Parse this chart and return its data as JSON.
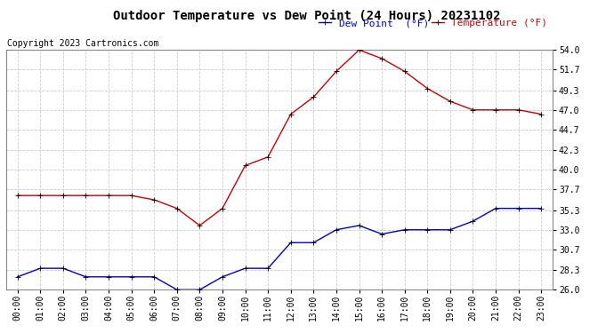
{
  "title": "Outdoor Temperature vs Dew Point (24 Hours) 20231102",
  "copyright_text": "Copyright 2023 Cartronics.com",
  "legend_dew": "Dew Point  (°F)",
  "legend_temp": "Temperature (°F)",
  "hours": [
    "00:00",
    "01:00",
    "02:00",
    "03:00",
    "04:00",
    "05:00",
    "06:00",
    "07:00",
    "08:00",
    "09:00",
    "10:00",
    "11:00",
    "12:00",
    "13:00",
    "14:00",
    "15:00",
    "16:00",
    "17:00",
    "18:00",
    "19:00",
    "20:00",
    "21:00",
    "22:00",
    "23:00"
  ],
  "temperature": [
    37.0,
    37.0,
    37.0,
    37.0,
    37.0,
    37.0,
    36.5,
    35.5,
    33.5,
    35.5,
    40.5,
    41.5,
    46.5,
    48.5,
    51.5,
    54.0,
    53.0,
    51.5,
    49.5,
    48.0,
    47.0,
    47.0,
    47.0,
    46.5
  ],
  "dew_point": [
    27.5,
    28.5,
    28.5,
    27.5,
    27.5,
    27.5,
    27.5,
    26.0,
    26.0,
    27.5,
    28.5,
    28.5,
    31.5,
    31.5,
    33.0,
    33.5,
    32.5,
    33.0,
    33.0,
    33.0,
    34.0,
    35.5,
    35.5,
    35.5
  ],
  "temp_color": "#cc0000",
  "dew_color": "#0000cc",
  "marker": "+",
  "markersize": 4,
  "linewidth": 1.0,
  "ylim": [
    26.0,
    54.0
  ],
  "yticks": [
    26.0,
    28.3,
    30.7,
    33.0,
    35.3,
    37.7,
    40.0,
    42.3,
    44.7,
    47.0,
    49.3,
    51.7,
    54.0
  ],
  "background_color": "#ffffff",
  "grid_color": "#cccccc",
  "title_fontsize": 10,
  "axis_fontsize": 7,
  "legend_fontsize": 8,
  "copyright_fontsize": 7
}
